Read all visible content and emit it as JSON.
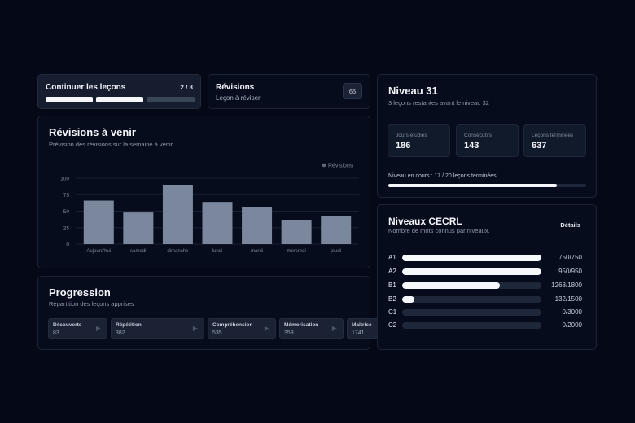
{
  "continue_card": {
    "title": "Continuer les leçons",
    "count": "2 / 3",
    "segments_done": 2,
    "segments_total": 3
  },
  "revisions_card": {
    "title": "Révisions",
    "subtitle": "Leçon à réviser",
    "badge": "65"
  },
  "upcoming": {
    "title": "Révisions à venir",
    "subtitle": "Prévision des révisions sur la semaine à venir",
    "chart_data": {
      "type": "bar",
      "categories": [
        "Aujourd'hui",
        "samedi",
        "dimanche",
        "lundi",
        "mardi",
        "mercredi",
        "jeudi"
      ],
      "series": [
        {
          "name": "Révisions",
          "values": [
            66,
            48,
            89,
            64,
            56,
            37,
            42
          ]
        }
      ],
      "ylim": [
        0,
        100
      ],
      "yticks": [
        "100",
        "75",
        "50",
        "25",
        "0"
      ],
      "grid": true,
      "legend": "top-right",
      "bar_color": "#7b879c"
    }
  },
  "progression": {
    "title": "Progression",
    "subtitle": "Répartition des leçons apprises",
    "items": [
      {
        "label": "Découverte",
        "value": "83",
        "icon": "play-icon"
      },
      {
        "label": "Répétition",
        "value": "382",
        "icon": "play-icon"
      },
      {
        "label": "Compréhension",
        "value": "535",
        "icon": "play-icon"
      },
      {
        "label": "Mémorisation",
        "value": "359",
        "icon": "play-icon"
      },
      {
        "label": "Maîtrise",
        "value": "1741",
        "icon": "play-icon"
      }
    ]
  },
  "level": {
    "title": "Niveau 31",
    "subtitle": "3 leçons restantes avant le niveau 32",
    "stats": [
      {
        "label": "Jours étudiés",
        "value": "186"
      },
      {
        "label": "Consécutifs",
        "value": "143"
      },
      {
        "label": "Leçons terminées",
        "value": "637"
      }
    ],
    "progress_label": "Niveau en cours : 17 / 20 leçons terminées",
    "progress_fraction": 0.85
  },
  "cecrl": {
    "title": "Niveaux CECRL",
    "subtitle": "Nombre de mots connus par niveaux.",
    "details_label": "Détails",
    "levels": [
      {
        "code": "A1",
        "value": "750/750",
        "fraction": 1.0
      },
      {
        "code": "A2",
        "value": "950/950",
        "fraction": 1.0
      },
      {
        "code": "B1",
        "value": "1268/1800",
        "fraction": 0.7044
      },
      {
        "code": "B2",
        "value": "132/1500",
        "fraction": 0.088
      },
      {
        "code": "C1",
        "value": "0/3000",
        "fraction": 0
      },
      {
        "code": "C2",
        "value": "0/2000",
        "fraction": 0
      }
    ]
  }
}
